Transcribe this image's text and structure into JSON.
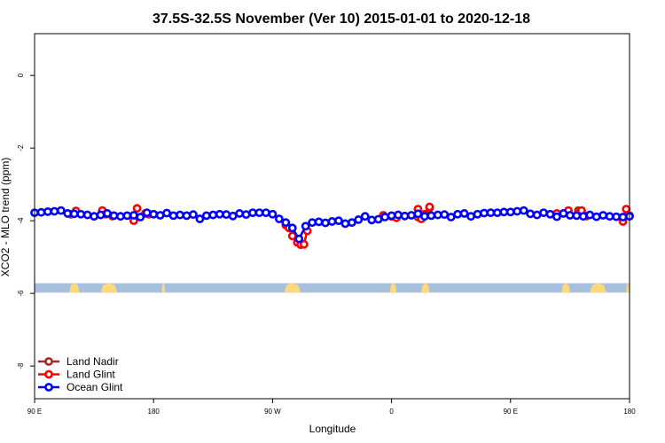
{
  "chart_data": {
    "type": "line",
    "title": "37.5S-32.5S November (Ver 10)   2015-01-01 to 2020-12-18",
    "xlabel": "Longitude",
    "ylabel": "XCO2 - MLO trend (ppm)",
    "xlim": [
      90,
      450
    ],
    "ylim": [
      -8.9,
      1.15
    ],
    "x_ticks": [
      {
        "value": 90,
        "label": "90 E"
      },
      {
        "value": 162,
        "label": "180"
      },
      {
        "value": 234,
        "label": "90 W"
      },
      {
        "value": 306,
        "label": "0"
      },
      {
        "value": 378,
        "label": "90 E"
      },
      {
        "value": 450,
        "label": "180"
      }
    ],
    "y_ticks": [
      {
        "value": 0,
        "label": "0"
      },
      {
        "value": -2,
        "label": "-2"
      },
      {
        "value": -4,
        "label": "-4"
      },
      {
        "value": -6,
        "label": "-6"
      },
      {
        "value": -8,
        "label": "-8"
      }
    ],
    "map_strip": {
      "y_top": -5.72,
      "y_bottom": -5.98,
      "ocean_color": "#a9c0dd",
      "land_color": "#fdd97a",
      "land_segments": [
        [
          111,
          117
        ],
        [
          130,
          140
        ],
        [
          167,
          169
        ],
        [
          241,
          251
        ],
        [
          305,
          309
        ],
        [
          324,
          329
        ],
        [
          409,
          414
        ],
        [
          426,
          436
        ],
        [
          448,
          450
        ]
      ]
    },
    "series": [
      {
        "name": "Land Nadir",
        "color": "#a52a2a",
        "x": [
          131,
          150,
          306,
          322,
          329,
          419
        ],
        "y": [
          -3.72,
          -3.86,
          -3.88,
          -3.9,
          -3.65,
          -3.72
        ]
      },
      {
        "name": "Land Glint",
        "color": "#ff0000",
        "x": [
          112,
          115,
          131,
          133,
          137,
          150,
          152,
          157,
          159,
          242,
          244,
          246,
          249,
          251,
          253,
          255,
          301,
          306,
          309,
          322,
          324,
          326,
          329,
          406,
          413,
          419,
          421,
          424,
          446,
          448,
          450
        ],
        "y": [
          -3.82,
          -3.73,
          -3.72,
          -3.82,
          -3.87,
          -4.0,
          -3.66,
          -3.8,
          -3.82,
          -4.12,
          -4.2,
          -4.42,
          -4.6,
          -4.66,
          -4.65,
          -4.28,
          -3.85,
          -3.88,
          -3.92,
          -3.68,
          -3.95,
          -3.82,
          -3.62,
          -3.8,
          -3.72,
          -3.77,
          -3.72,
          -3.87,
          -4.02,
          -3.68,
          -3.86
        ]
      },
      {
        "name": "Ocean Glint",
        "color": "#0000ff",
        "x": [
          90,
          94,
          98,
          102,
          106,
          110,
          114,
          118,
          122,
          126,
          130,
          134,
          138,
          142,
          146,
          150,
          154,
          158,
          162,
          166,
          170,
          174,
          178,
          182,
          186,
          190,
          194,
          198,
          202,
          206,
          210,
          214,
          218,
          222,
          226,
          230,
          234,
          238,
          242,
          246,
          250,
          254,
          258,
          262,
          266,
          270,
          274,
          278,
          282,
          286,
          290,
          294,
          298,
          302,
          306,
          310,
          314,
          318,
          322,
          326,
          330,
          334,
          338,
          342,
          346,
          350,
          354,
          358,
          362,
          366,
          370,
          374,
          378,
          382,
          386,
          390,
          394,
          398,
          402,
          406,
          410,
          414,
          418,
          422,
          426,
          430,
          434,
          438,
          442,
          446,
          450
        ],
        "y": [
          -3.78,
          -3.77,
          -3.75,
          -3.74,
          -3.72,
          -3.8,
          -3.81,
          -3.82,
          -3.84,
          -3.88,
          -3.84,
          -3.8,
          -3.86,
          -3.88,
          -3.86,
          -3.85,
          -3.9,
          -3.78,
          -3.82,
          -3.85,
          -3.79,
          -3.86,
          -3.84,
          -3.86,
          -3.83,
          -3.95,
          -3.86,
          -3.84,
          -3.82,
          -3.83,
          -3.87,
          -3.8,
          -3.83,
          -3.78,
          -3.78,
          -3.78,
          -3.82,
          -3.95,
          -4.05,
          -4.2,
          -4.5,
          -4.15,
          -4.05,
          -4.03,
          -4.06,
          -4.02,
          -4.0,
          -4.08,
          -4.05,
          -3.97,
          -3.88,
          -3.98,
          -3.96,
          -3.9,
          -3.86,
          -3.84,
          -3.87,
          -3.85,
          -3.81,
          -3.88,
          -3.86,
          -3.84,
          -3.83,
          -3.9,
          -3.82,
          -3.8,
          -3.88,
          -3.82,
          -3.79,
          -3.78,
          -3.78,
          -3.76,
          -3.76,
          -3.74,
          -3.72,
          -3.81,
          -3.84,
          -3.78,
          -3.82,
          -3.89,
          -3.8,
          -3.85,
          -3.86,
          -3.88,
          -3.84,
          -3.89,
          -3.85,
          -3.88,
          -3.89,
          -3.9,
          -3.88
        ]
      }
    ],
    "legend": {
      "placement": "bottom-left",
      "entries": [
        "Land Nadir",
        "Land Glint",
        "Ocean Glint"
      ]
    }
  }
}
